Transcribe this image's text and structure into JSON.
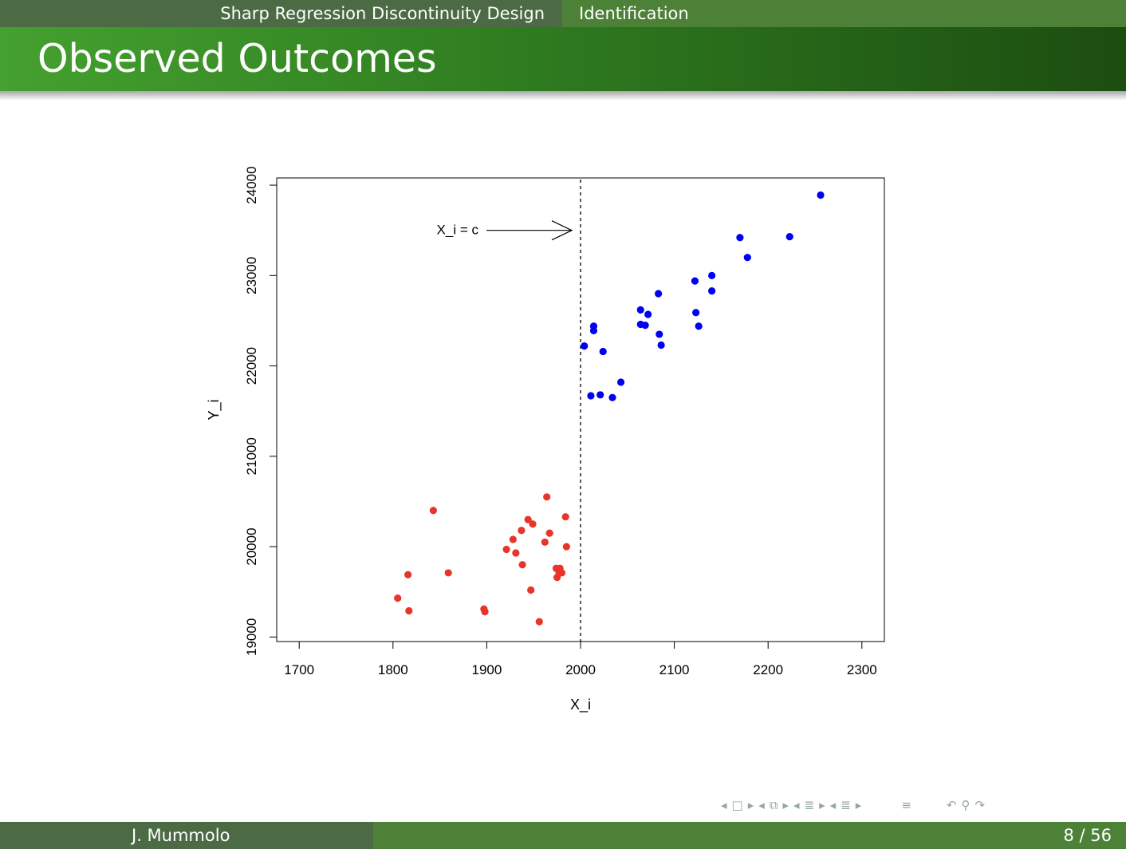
{
  "nav": {
    "section": "Sharp Regression Discontinuity Design",
    "subsection": "Identification"
  },
  "slide": {
    "title": "Observed Outcomes"
  },
  "footer": {
    "author": "J. Mummolo",
    "page": "8 / 56"
  },
  "nav_icons": [
    "slide-back-icon",
    "frame-icon",
    "slide-forward-icon",
    "section-back-icon",
    "frame-stack-icon",
    "section-forward-icon",
    "subsection-back-icon",
    "outline-icon",
    "subsection-forward-icon",
    "align-icon",
    "undo-icon",
    "search-icon",
    "redo-icon"
  ],
  "chart_data": {
    "type": "scatter",
    "xlabel": "X_i",
    "ylabel": "Y_i",
    "xlim": [
      1676,
      2324
    ],
    "ylim": [
      18950,
      24080
    ],
    "xticks": [
      1700,
      1800,
      1900,
      2000,
      2100,
      2200,
      2300
    ],
    "yticks": [
      19000,
      20000,
      21000,
      22000,
      23000,
      24000
    ],
    "cutoff": 2000,
    "annotation": {
      "text": "X_i = c",
      "points_to_y": 23500
    },
    "series": [
      {
        "color": "#e8352a",
        "points": [
          [
            1805,
            19430
          ],
          [
            1816,
            19690
          ],
          [
            1817,
            19290
          ],
          [
            1843,
            20400
          ],
          [
            1859,
            19710
          ],
          [
            1897,
            19310
          ],
          [
            1898,
            19280
          ],
          [
            1921,
            19970
          ],
          [
            1928,
            20080
          ],
          [
            1931,
            19930
          ],
          [
            1937,
            20180
          ],
          [
            1938,
            19800
          ],
          [
            1944,
            20300
          ],
          [
            1947,
            19520
          ],
          [
            1949,
            20250
          ],
          [
            1956,
            19170
          ],
          [
            1962,
            20050
          ],
          [
            1964,
            20550
          ],
          [
            1967,
            20150
          ],
          [
            1974,
            19760
          ],
          [
            1975,
            19660
          ],
          [
            1977,
            19720
          ],
          [
            1978,
            19760
          ],
          [
            1980,
            19710
          ],
          [
            1984,
            20330
          ],
          [
            1985,
            20000
          ]
        ]
      },
      {
        "color": "#0000f5",
        "points": [
          [
            2004,
            22220
          ],
          [
            2011,
            21670
          ],
          [
            2014,
            22440
          ],
          [
            2014,
            22390
          ],
          [
            2021,
            21680
          ],
          [
            2024,
            22160
          ],
          [
            2034,
            21650
          ],
          [
            2043,
            21820
          ],
          [
            2064,
            22620
          ],
          [
            2064,
            22460
          ],
          [
            2069,
            22450
          ],
          [
            2072,
            22570
          ],
          [
            2083,
            22800
          ],
          [
            2084,
            22350
          ],
          [
            2086,
            22230
          ],
          [
            2122,
            22940
          ],
          [
            2123,
            22590
          ],
          [
            2126,
            22440
          ],
          [
            2140,
            23000
          ],
          [
            2140,
            22830
          ],
          [
            2170,
            23420
          ],
          [
            2178,
            23200
          ],
          [
            2223,
            23430
          ],
          [
            2256,
            23890
          ]
        ]
      }
    ]
  }
}
